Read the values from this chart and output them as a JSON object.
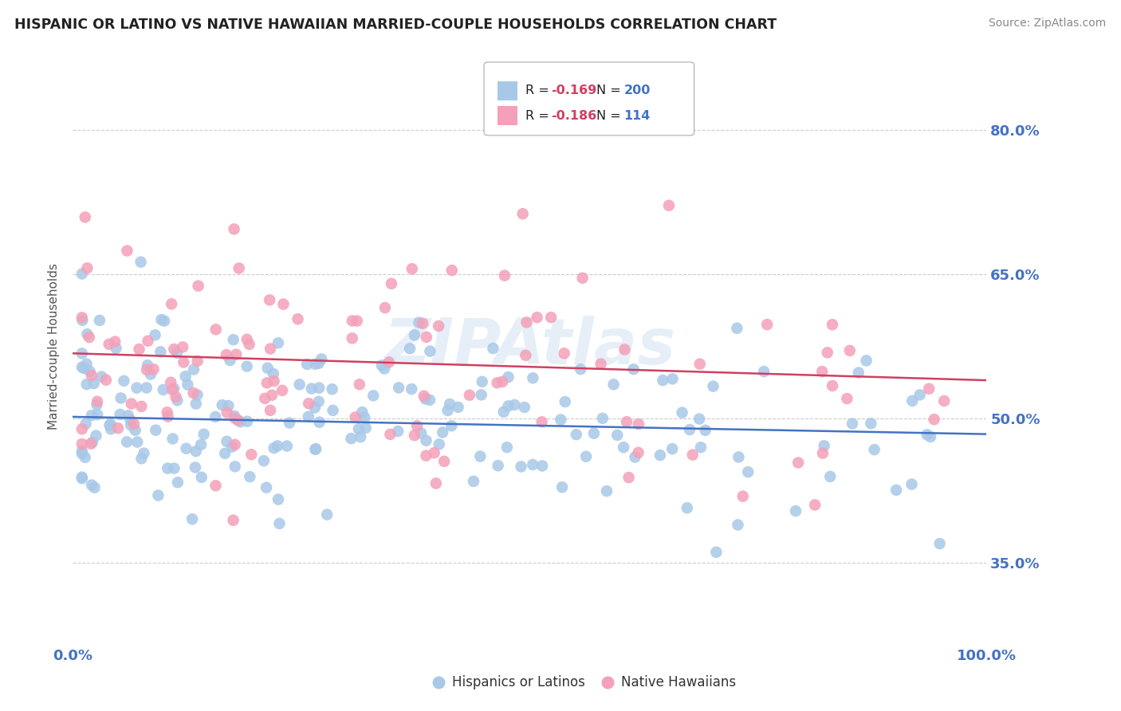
{
  "title": "HISPANIC OR LATINO VS NATIVE HAWAIIAN MARRIED-COUPLE HOUSEHOLDS CORRELATION CHART",
  "source": "Source: ZipAtlas.com",
  "ylabel": "Married-couple Households",
  "legend_label1": "Hispanics or Latinos",
  "legend_label2": "Native Hawaiians",
  "r1": "-0.169",
  "n1": "200",
  "r2": "-0.186",
  "n2": "114",
  "yticks": [
    0.35,
    0.5,
    0.65,
    0.8
  ],
  "ytick_labels": [
    "35.0%",
    "50.0%",
    "65.0%",
    "80.0%"
  ],
  "color_blue": "#a8c8e8",
  "color_pink": "#f4a0b8",
  "color_blue_line": "#4472c4",
  "color_pink_line": "#d04060",
  "ylim_low": 0.27,
  "ylim_high": 0.88,
  "blue_intercept": 0.502,
  "blue_slope": -0.018,
  "pink_intercept": 0.568,
  "pink_slope": -0.028,
  "seed": 99
}
